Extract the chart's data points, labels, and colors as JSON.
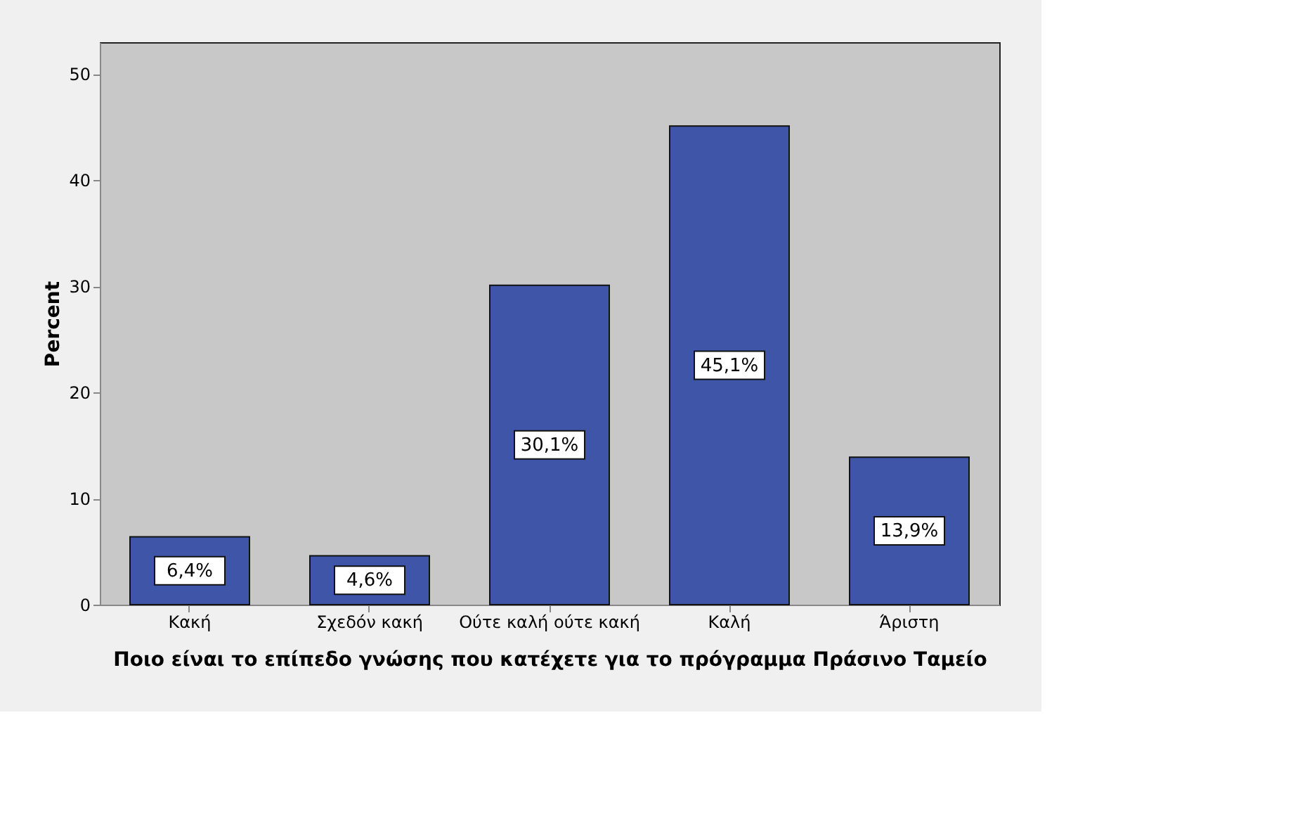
{
  "chart_data": {
    "type": "bar",
    "categories": [
      "Κακή",
      "Σχεδόν κακή",
      "Ούτε καλή ούτε κακή",
      "Καλή",
      "Άριστη"
    ],
    "values": [
      6.4,
      4.6,
      30.1,
      45.1,
      13.9
    ],
    "value_labels": [
      "6,4%",
      "4,6%",
      "30,1%",
      "45,1%",
      "13,9%"
    ],
    "color": "#3f55a8",
    "xlabel": "Ποιο είναι το επίπεδο γνώσης που κατέχετε για το πρόγραμμα Πράσινο Ταμείο",
    "ylabel": "Percent",
    "ylim": [
      0,
      53
    ],
    "yticks": [
      0,
      10,
      20,
      30,
      40,
      50
    ],
    "grid": false
  }
}
